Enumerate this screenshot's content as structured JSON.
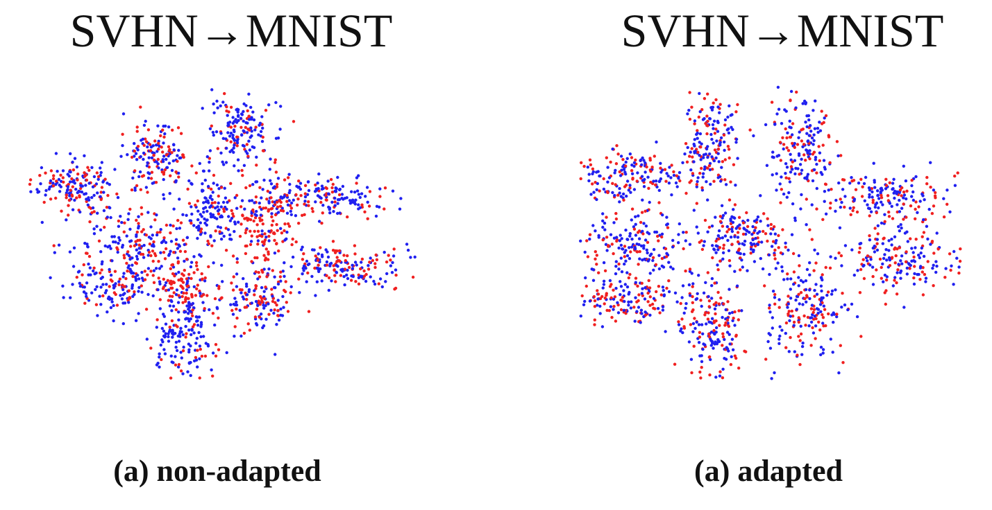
{
  "chart_data": [
    {
      "type": "scatter",
      "title": "SVHN→MNIST",
      "caption": "(a) non-adapted",
      "xlabel": "",
      "ylabel": "",
      "grid": false,
      "legend": "none",
      "series_colors": [
        "#2020f0",
        "#f02020"
      ],
      "xlim": [
        0,
        560
      ],
      "ylim": [
        0,
        430
      ],
      "clusters": [
        {
          "cx": 70,
          "cy": 150,
          "sx": 32,
          "sy": 20,
          "red_fraction": 0.35,
          "count": 170
        },
        {
          "cx": 185,
          "cy": 108,
          "sx": 22,
          "sy": 22,
          "red_fraction": 0.4,
          "count": 150
        },
        {
          "cx": 305,
          "cy": 65,
          "sx": 22,
          "sy": 22,
          "red_fraction": 0.3,
          "count": 150
        },
        {
          "cx": 430,
          "cy": 165,
          "sx": 45,
          "sy": 15,
          "red_fraction": 0.35,
          "count": 160
        },
        {
          "cx": 455,
          "cy": 265,
          "sx": 45,
          "sy": 15,
          "red_fraction": 0.4,
          "count": 170
        },
        {
          "cx": 340,
          "cy": 205,
          "sx": 25,
          "sy": 45,
          "red_fraction": 0.65,
          "count": 200
        },
        {
          "cx": 260,
          "cy": 180,
          "sx": 20,
          "sy": 25,
          "red_fraction": 0.15,
          "count": 120
        },
        {
          "cx": 155,
          "cy": 235,
          "sx": 50,
          "sy": 25,
          "red_fraction": 0.4,
          "count": 200
        },
        {
          "cx": 130,
          "cy": 300,
          "sx": 30,
          "sy": 18,
          "red_fraction": 0.25,
          "count": 120
        },
        {
          "cx": 232,
          "cy": 355,
          "sx": 26,
          "sy": 38,
          "red_fraction": 0.25,
          "count": 190
        },
        {
          "cx": 330,
          "cy": 315,
          "sx": 30,
          "sy": 20,
          "red_fraction": 0.5,
          "count": 130
        },
        {
          "cx": 220,
          "cy": 290,
          "sx": 18,
          "sy": 25,
          "red_fraction": 0.8,
          "count": 90
        }
      ]
    },
    {
      "type": "scatter",
      "title": "SVHN→MNIST",
      "caption": "(a) adapted",
      "xlabel": "",
      "ylabel": "",
      "grid": false,
      "legend": "none",
      "series_colors": [
        "#2020f0",
        "#f02020"
      ],
      "xlim": [
        0,
        560
      ],
      "ylim": [
        0,
        430
      ],
      "clusters": [
        {
          "cx": 75,
          "cy": 135,
          "sx": 40,
          "sy": 20,
          "red_fraction": 0.4,
          "count": 170
        },
        {
          "cx": 190,
          "cy": 90,
          "sx": 22,
          "sy": 38,
          "red_fraction": 0.4,
          "count": 180
        },
        {
          "cx": 320,
          "cy": 95,
          "sx": 25,
          "sy": 38,
          "red_fraction": 0.4,
          "count": 180
        },
        {
          "cx": 440,
          "cy": 165,
          "sx": 45,
          "sy": 18,
          "red_fraction": 0.4,
          "count": 170
        },
        {
          "cx": 460,
          "cy": 255,
          "sx": 45,
          "sy": 25,
          "red_fraction": 0.45,
          "count": 190
        },
        {
          "cx": 75,
          "cy": 230,
          "sx": 40,
          "sy": 20,
          "red_fraction": 0.4,
          "count": 170
        },
        {
          "cx": 240,
          "cy": 225,
          "sx": 30,
          "sy": 25,
          "red_fraction": 0.3,
          "count": 170
        },
        {
          "cx": 70,
          "cy": 310,
          "sx": 38,
          "sy": 22,
          "red_fraction": 0.4,
          "count": 170
        },
        {
          "cx": 195,
          "cy": 345,
          "sx": 22,
          "sy": 38,
          "red_fraction": 0.4,
          "count": 180
        },
        {
          "cx": 330,
          "cy": 330,
          "sx": 32,
          "sy": 35,
          "red_fraction": 0.4,
          "count": 190
        }
      ]
    }
  ]
}
